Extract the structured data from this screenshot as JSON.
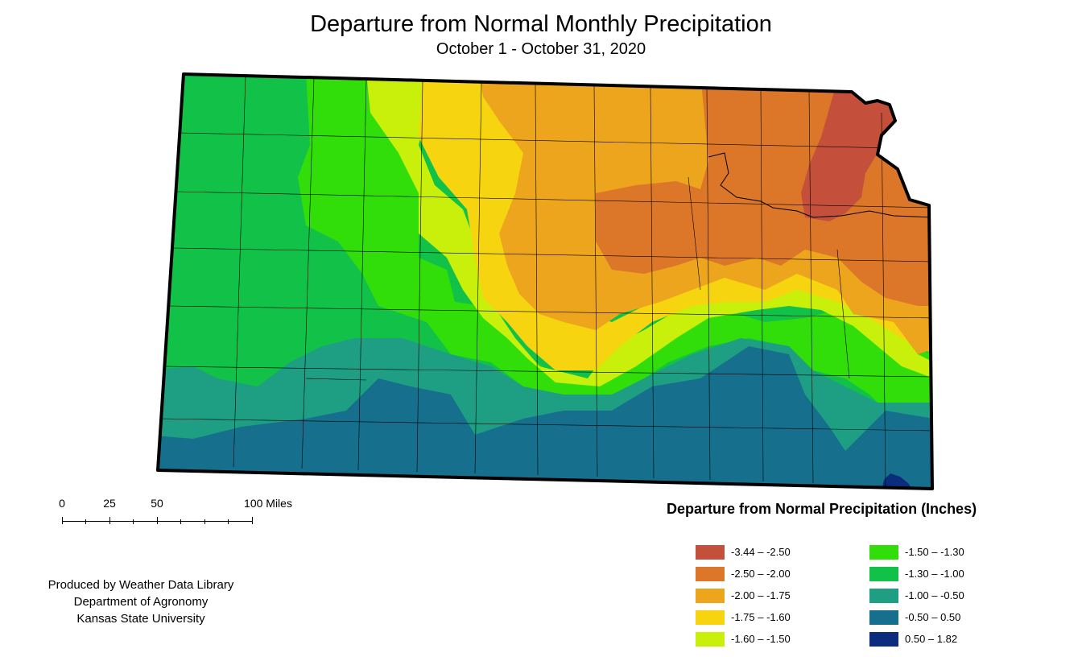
{
  "title": "Departure from Normal Monthly Precipitation",
  "subtitle": "October 1 - October 31, 2020",
  "scale_bar": {
    "labels": [
      "0",
      "25",
      "50",
      "100 Miles"
    ]
  },
  "credits": [
    "Produced by Weather Data Library",
    "Department of Agronomy",
    "Kansas State University"
  ],
  "legend": {
    "title": "Departure from Normal Precipitation (Inches)",
    "items": [
      {
        "label": "-3.44 – -2.50",
        "color": "#c4503c"
      },
      {
        "label": "-2.50 – -2.00",
        "color": "#dc7628"
      },
      {
        "label": "-2.00 – -1.75",
        "color": "#eda51e"
      },
      {
        "label": "-1.75 – -1.60",
        "color": "#f6d510"
      },
      {
        "label": "-1.60 – -1.50",
        "color": "#c8f00a"
      },
      {
        "label": "-1.50 – -1.30",
        "color": "#32de0a"
      },
      {
        "label": "-1.30 – -1.00",
        "color": "#12c248"
      },
      {
        "label": "-1.00 – -0.50",
        "color": "#1e9e82"
      },
      {
        "label": "-0.50 – 0.50",
        "color": "#166f8c"
      },
      {
        "label": "0.50 – 1.82",
        "color": "#0c2d7d"
      }
    ]
  }
}
